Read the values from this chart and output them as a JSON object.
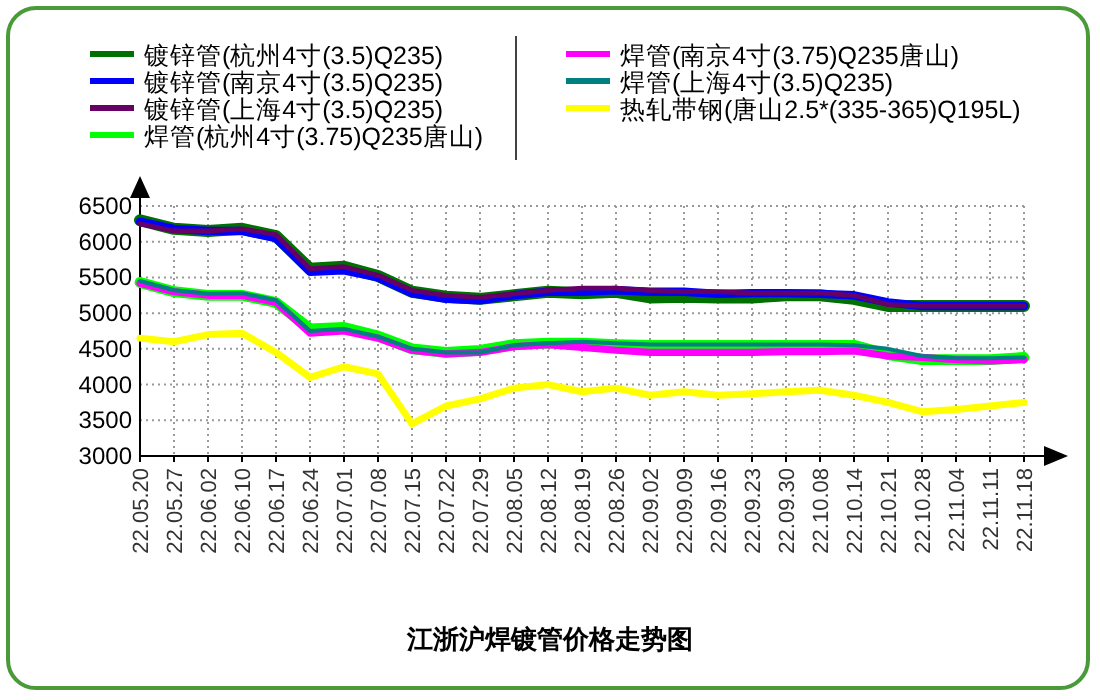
{
  "chart_data": {
    "type": "line",
    "title": "江浙沪焊镀管价格走势图",
    "categories": [
      "22.05.20",
      "22.05.27",
      "22.06.02",
      "22.06.10",
      "22.06.17",
      "22.06.24",
      "22.07.01",
      "22.07.08",
      "22.07.15",
      "22.07.22",
      "22.07.29",
      "22.08.05",
      "22.08.12",
      "22.08.19",
      "22.08.26",
      "22.09.02",
      "22.09.09",
      "22.09.16",
      "22.09.23",
      "22.09.30",
      "22.10.08",
      "22.10.14",
      "22.10.21",
      "22.10.28",
      "22.11.04",
      "22.11.11",
      "22.11.18"
    ],
    "series": [
      {
        "name": "镀锌管(杭州4寸(3.5)Q235)",
        "color": "#007000",
        "values": [
          6300,
          6180,
          6150,
          6180,
          6080,
          5620,
          5650,
          5520,
          5300,
          5230,
          5200,
          5250,
          5300,
          5280,
          5300,
          5220,
          5230,
          5220,
          5220,
          5250,
          5250,
          5200,
          5100,
          5100,
          5100,
          5100,
          5100
        ]
      },
      {
        "name": "镀锌管(南京4寸(3.5)Q235)",
        "color": "#0000ff",
        "values": [
          6280,
          6180,
          6150,
          6150,
          6050,
          5580,
          5600,
          5500,
          5280,
          5200,
          5180,
          5250,
          5300,
          5300,
          5320,
          5300,
          5300,
          5270,
          5280,
          5280,
          5270,
          5250,
          5150,
          5100,
          5100,
          5100,
          5100
        ]
      },
      {
        "name": "镀锌管(上海4寸(3.5)Q235)",
        "color": "#660066",
        "values": [
          6250,
          6150,
          6150,
          6180,
          6100,
          5620,
          5650,
          5530,
          5320,
          5250,
          5220,
          5270,
          5320,
          5350,
          5350,
          5320,
          5300,
          5300,
          5280,
          5280,
          5280,
          5250,
          5120,
          5100,
          5100,
          5100,
          5100
        ]
      },
      {
        "name": "焊管(杭州4寸(3.75)Q235唐山)",
        "color": "#00ff00",
        "values": [
          5430,
          5300,
          5250,
          5250,
          5150,
          4780,
          4800,
          4680,
          4500,
          4450,
          4480,
          4560,
          4580,
          4580,
          4560,
          4550,
          4550,
          4550,
          4550,
          4550,
          4550,
          4550,
          4420,
          4350,
          4350,
          4350,
          4380
        ]
      },
      {
        "name": "焊管(南京4寸(3.75)Q235唐山)",
        "color": "#ff00ff",
        "values": [
          5420,
          5300,
          5250,
          5250,
          5150,
          4720,
          4750,
          4650,
          4480,
          4430,
          4450,
          4530,
          4560,
          4520,
          4480,
          4450,
          4450,
          4450,
          4450,
          4460,
          4460,
          4470,
          4400,
          4380,
          4350,
          4330,
          4350
        ]
      },
      {
        "name": "焊管(上海4寸(3.5)Q235)",
        "color": "#008080",
        "values": [
          5450,
          5320,
          5270,
          5280,
          5180,
          4750,
          4780,
          4670,
          4500,
          4450,
          4450,
          4550,
          4580,
          4600,
          4580,
          4560,
          4560,
          4560,
          4560,
          4560,
          4560,
          4550,
          4500,
          4400,
          4370,
          4370,
          4380
        ]
      },
      {
        "name": "热轧带钢(唐山2.5*(335-365)Q195L)",
        "color": "#ffff00",
        "values": [
          4650,
          4600,
          4700,
          4720,
          4450,
          4100,
          4250,
          4150,
          3450,
          3700,
          3800,
          3950,
          4000,
          3900,
          3950,
          3850,
          3900,
          3850,
          3870,
          3900,
          3920,
          3850,
          3750,
          3620,
          3650,
          3700,
          3750
        ]
      }
    ],
    "ylim": [
      3000,
      6500
    ],
    "yticks": [
      3000,
      3500,
      4000,
      4500,
      5000,
      5500,
      6000,
      6500
    ],
    "grid": true,
    "legend": "top",
    "line_style": "solid",
    "marker": "none"
  }
}
